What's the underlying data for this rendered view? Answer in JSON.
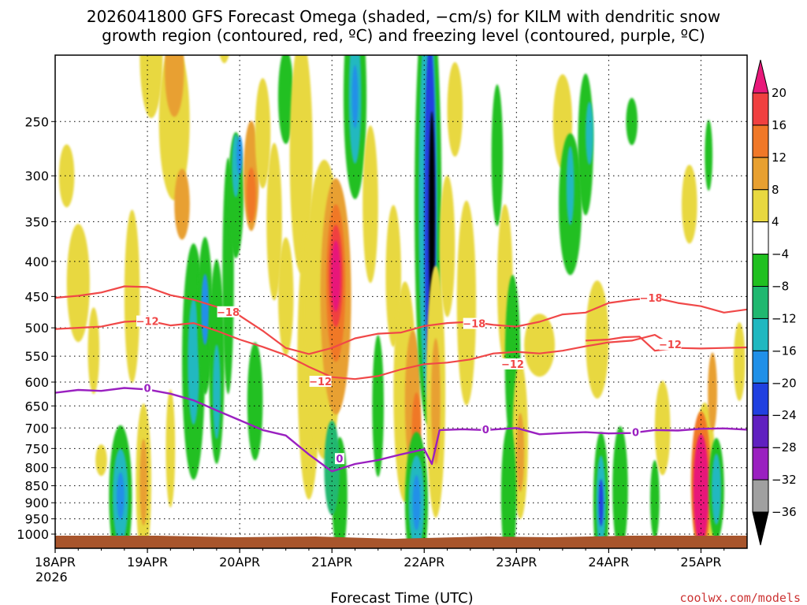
{
  "chart_data": {
    "type": "heatmap",
    "title_line1": "2026041800 GFS Forecast Omega (shaded, −cm/s) for KILM with dendritic snow",
    "title_line2": "growth region (contoured, red, ºC) and freezing level (contoured, purple, ºC)",
    "xlabel": "Forecast Time (UTC)",
    "year_label": "2026",
    "credit": "coolwx.com/models",
    "x_range_hours": [
      0,
      180
    ],
    "x_ticks": [
      {
        "label": "18APR",
        "hour": 0
      },
      {
        "label": "19APR",
        "hour": 24
      },
      {
        "label": "20APR",
        "hour": 48
      },
      {
        "label": "21APR",
        "hour": 72
      },
      {
        "label": "22APR",
        "hour": 96
      },
      {
        "label": "23APR",
        "hour": 120
      },
      {
        "label": "24APR",
        "hour": 144
      },
      {
        "label": "25APR",
        "hour": 168
      }
    ],
    "y_label_units": "hPa",
    "y_range_hpa": [
      1000,
      200
    ],
    "y_ticks": [
      250,
      300,
      350,
      400,
      450,
      500,
      550,
      600,
      650,
      700,
      750,
      800,
      850,
      900,
      950,
      1000
    ],
    "colorbar": {
      "levels": [
        20,
        16,
        12,
        8,
        4,
        -4,
        -8,
        -12,
        -16,
        -20,
        -24,
        -28,
        -32,
        -36
      ],
      "colors": {
        "gt20": "#e8197a",
        "16_20": "#f04040",
        "12_16": "#f07828",
        "8_12": "#e8a030",
        "4_8": "#e8d840",
        "neutral": "#ffffff",
        "m8_m4": "#20c020",
        "m12_m8": "#20b870",
        "m16_m12": "#20b8c0",
        "m20_m16": "#2090e8",
        "m24_m20": "#2040e0",
        "m28_m24": "#6020c0",
        "m32_m28": "#9a20c0",
        "m36_m32": "#a0a0a0",
        "lt36": "#000000"
      }
    },
    "contours": {
      "dendritic_minus12": {
        "label": "-12",
        "color": "#f04848",
        "points": [
          [
            0,
            502
          ],
          [
            6,
            500
          ],
          [
            12,
            498
          ],
          [
            18,
            490
          ],
          [
            24,
            488
          ],
          [
            30,
            496
          ],
          [
            36,
            492
          ],
          [
            42,
            505
          ],
          [
            48,
            520
          ],
          [
            54,
            533
          ],
          [
            60,
            548
          ],
          [
            66,
            570
          ],
          [
            72,
            590
          ],
          [
            78,
            594
          ],
          [
            84,
            588
          ],
          [
            90,
            575
          ],
          [
            96,
            565
          ],
          [
            102,
            562
          ],
          [
            108,
            556
          ],
          [
            114,
            545
          ],
          [
            120,
            542
          ],
          [
            126,
            545
          ],
          [
            132,
            540
          ],
          [
            138,
            532
          ],
          [
            144,
            525
          ],
          [
            150,
            522
          ],
          [
            156,
            512
          ],
          [
            158,
            520
          ]
        ]
      },
      "dendritic_minus18": {
        "label": "-18",
        "color": "#f04848",
        "points": [
          [
            0,
            452
          ],
          [
            6,
            449
          ],
          [
            12,
            444
          ],
          [
            18,
            435
          ],
          [
            24,
            436
          ],
          [
            30,
            448
          ],
          [
            36,
            455
          ],
          [
            42,
            466
          ],
          [
            48,
            480
          ],
          [
            54,
            505
          ],
          [
            60,
            535
          ],
          [
            66,
            546
          ],
          [
            72,
            535
          ],
          [
            78,
            518
          ],
          [
            84,
            510
          ],
          [
            90,
            508
          ],
          [
            96,
            497
          ],
          [
            102,
            492
          ],
          [
            108,
            490
          ],
          [
            114,
            495
          ],
          [
            120,
            498
          ],
          [
            126,
            490
          ],
          [
            132,
            478
          ],
          [
            138,
            475
          ],
          [
            144,
            460
          ],
          [
            150,
            455
          ],
          [
            156,
            452
          ],
          [
            162,
            460
          ],
          [
            168,
            465
          ],
          [
            174,
            475
          ],
          [
            180,
            470
          ]
        ]
      },
      "dendritic_minus12_upper": {
        "label": "-12",
        "color": "#f04848",
        "points": [
          [
            138,
            522
          ],
          [
            144,
            520
          ],
          [
            148,
            516
          ],
          [
            152,
            515
          ],
          [
            156,
            540
          ],
          [
            162,
            535
          ],
          [
            168,
            536
          ],
          [
            174,
            535
          ],
          [
            180,
            534
          ]
        ]
      },
      "freezing_level_0": {
        "label": "0",
        "color": "#9a20c0",
        "points": [
          [
            0,
            622
          ],
          [
            6,
            616
          ],
          [
            12,
            618
          ],
          [
            18,
            612
          ],
          [
            24,
            615
          ],
          [
            30,
            624
          ],
          [
            36,
            638
          ],
          [
            42,
            660
          ],
          [
            48,
            682
          ],
          [
            54,
            705
          ],
          [
            60,
            718
          ],
          [
            66,
            765
          ],
          [
            72,
            810
          ],
          [
            78,
            790
          ],
          [
            84,
            780
          ],
          [
            90,
            765
          ],
          [
            96,
            752
          ],
          [
            98,
            790
          ],
          [
            100,
            705
          ],
          [
            106,
            703
          ],
          [
            112,
            705
          ],
          [
            120,
            700
          ],
          [
            126,
            715
          ],
          [
            132,
            712
          ],
          [
            138,
            710
          ],
          [
            144,
            713
          ],
          [
            150,
            712
          ],
          [
            156,
            705
          ],
          [
            162,
            706
          ],
          [
            168,
            702
          ],
          [
            174,
            701
          ],
          [
            180,
            704
          ]
        ]
      }
    },
    "contour_labels": [
      {
        "text": "−18",
        "hour": 45,
        "hpa": 475,
        "color": "#f04848"
      },
      {
        "text": "−12",
        "hour": 24,
        "hpa": 490,
        "color": "#f04848"
      },
      {
        "text": "−12",
        "hour": 69,
        "hpa": 600,
        "color": "#f04848"
      },
      {
        "text": "−18",
        "hour": 109,
        "hpa": 494,
        "color": "#f04848"
      },
      {
        "text": "−12",
        "hour": 119,
        "hpa": 566,
        "color": "#f04848"
      },
      {
        "text": "−18",
        "hour": 155,
        "hpa": 453,
        "color": "#f04848"
      },
      {
        "text": "−12",
        "hour": 160,
        "hpa": 530,
        "color": "#f04848"
      },
      {
        "text": "0",
        "hour": 24,
        "hpa": 614,
        "color": "#9a20c0"
      },
      {
        "text": "0",
        "hour": 74,
        "hpa": 778,
        "color": "#9a20c0"
      },
      {
        "text": "0",
        "hour": 112,
        "hpa": 705,
        "color": "#9a20c0"
      },
      {
        "text": "0",
        "hour": 151,
        "hpa": 712,
        "color": "#9a20c0"
      }
    ],
    "omega_blobs": [
      {
        "hour": 3,
        "hpa": 300,
        "w": 2,
        "h": 80,
        "c": "#e8d840"
      },
      {
        "hour": 6,
        "hpa": 430,
        "w": 3,
        "h": 150,
        "c": "#e8d840"
      },
      {
        "hour": 10,
        "hpa": 540,
        "w": 1.5,
        "h": 110,
        "c": "#e8d840"
      },
      {
        "hour": 12,
        "hpa": 780,
        "w": 1.5,
        "h": 40,
        "c": "#e8d840"
      },
      {
        "hour": 17,
        "hpa": 880,
        "w": 3,
        "h": 180,
        "c": "#20c020"
      },
      {
        "hour": 17,
        "hpa": 880,
        "w": 2,
        "h": 120,
        "c": "#20b8c0"
      },
      {
        "hour": 17,
        "hpa": 880,
        "w": 1,
        "h": 60,
        "c": "#2090e8"
      },
      {
        "hour": 23,
        "hpa": 840,
        "w": 2,
        "h": 200,
        "c": "#e8d840"
      },
      {
        "hour": 23,
        "hpa": 840,
        "w": 1,
        "h": 110,
        "c": "#e8a030"
      },
      {
        "hour": 20,
        "hpa": 450,
        "w": 2,
        "h": 220,
        "c": "#e8d840"
      },
      {
        "hour": 25,
        "hpa": 200,
        "w": 3,
        "h": 160,
        "c": "#e8d840"
      },
      {
        "hour": 31,
        "hpa": 250,
        "w": 4,
        "h": 200,
        "c": "#e8d840"
      },
      {
        "hour": 31,
        "hpa": 210,
        "w": 2.5,
        "h": 120,
        "c": "#e8a030"
      },
      {
        "hour": 33,
        "hpa": 330,
        "w": 2,
        "h": 90,
        "c": "#e8a030"
      },
      {
        "hour": 30,
        "hpa": 750,
        "w": 1.2,
        "h": 150,
        "c": "#e8d840"
      },
      {
        "hour": 36,
        "hpa": 560,
        "w": 3,
        "h": 300,
        "c": "#20c020"
      },
      {
        "hour": 36,
        "hpa": 560,
        "w": 1.5,
        "h": 160,
        "c": "#20b8c0"
      },
      {
        "hour": 39,
        "hpa": 480,
        "w": 2,
        "h": 200,
        "c": "#20c020"
      },
      {
        "hour": 39,
        "hpa": 470,
        "w": 1,
        "h": 90,
        "c": "#2090e8"
      },
      {
        "hour": 42,
        "hpa": 560,
        "w": 2,
        "h": 260,
        "c": "#20c020"
      },
      {
        "hour": 42,
        "hpa": 620,
        "w": 1,
        "h": 120,
        "c": "#20b8c0"
      },
      {
        "hour": 45,
        "hpa": 420,
        "w": 1.5,
        "h": 300,
        "c": "#20c020"
      },
      {
        "hour": 47,
        "hpa": 320,
        "w": 2,
        "h": 160,
        "c": "#20c020"
      },
      {
        "hour": 47,
        "hpa": 290,
        "w": 1,
        "h": 80,
        "c": "#20b8c0"
      },
      {
        "hour": 48,
        "hpa": 280,
        "w": 0.8,
        "h": 50,
        "c": "#2090e8"
      },
      {
        "hour": 44,
        "hpa": 180,
        "w": 2,
        "h": 100,
        "c": "#e8d840"
      },
      {
        "hour": 51,
        "hpa": 300,
        "w": 2,
        "h": 140,
        "c": "#e8a030"
      },
      {
        "hour": 51,
        "hpa": 320,
        "w": 1.2,
        "h": 70,
        "c": "#f07828"
      },
      {
        "hour": 54,
        "hpa": 260,
        "w": 2,
        "h": 140,
        "c": "#e8d840"
      },
      {
        "hour": 57,
        "hpa": 350,
        "w": 2,
        "h": 200,
        "c": "#e8d840"
      },
      {
        "hour": 52,
        "hpa": 640,
        "w": 2,
        "h": 150,
        "c": "#20c020"
      },
      {
        "hour": 60,
        "hpa": 230,
        "w": 2,
        "h": 120,
        "c": "#20c020"
      },
      {
        "hour": 60,
        "hpa": 450,
        "w": 2,
        "h": 150,
        "c": "#e8d840"
      },
      {
        "hour": 64,
        "hpa": 280,
        "w": 3,
        "h": 300,
        "c": "#e8d840"
      },
      {
        "hour": 66,
        "hpa": 560,
        "w": 3,
        "h": 350,
        "c": "#e8d840"
      },
      {
        "hour": 70,
        "hpa": 470,
        "w": 5,
        "h": 380,
        "c": "#e8d840"
      },
      {
        "hour": 73,
        "hpa": 450,
        "w": 4,
        "h": 300,
        "c": "#e8a030"
      },
      {
        "hour": 73,
        "hpa": 430,
        "w": 2.5,
        "h": 200,
        "c": "#f07828"
      },
      {
        "hour": 73,
        "hpa": 420,
        "w": 1.8,
        "h": 130,
        "c": "#f04040"
      },
      {
        "hour": 73,
        "hpa": 420,
        "w": 1.2,
        "h": 90,
        "c": "#e8197a"
      },
      {
        "hour": 74,
        "hpa": 880,
        "w": 2,
        "h": 150,
        "c": "#20c020"
      },
      {
        "hour": 72,
        "hpa": 800,
        "w": 2,
        "h": 120,
        "c": "#20b870"
      },
      {
        "hour": 78,
        "hpa": 230,
        "w": 3,
        "h": 260,
        "c": "#20c020"
      },
      {
        "hour": 78,
        "hpa": 230,
        "w": 1.6,
        "h": 170,
        "c": "#20b8c0"
      },
      {
        "hour": 78,
        "hpa": 230,
        "w": 0.8,
        "h": 80,
        "c": "#2090e8"
      },
      {
        "hour": 82,
        "hpa": 330,
        "w": 2,
        "h": 200,
        "c": "#e8d840"
      },
      {
        "hour": 84,
        "hpa": 650,
        "w": 1.5,
        "h": 180,
        "c": "#20c020"
      },
      {
        "hour": 88,
        "hpa": 420,
        "w": 2,
        "h": 180,
        "c": "#e8d840"
      },
      {
        "hour": 91,
        "hpa": 620,
        "w": 3,
        "h": 280,
        "c": "#e8d840"
      },
      {
        "hour": 93,
        "hpa": 640,
        "w": 2,
        "h": 180,
        "c": "#e8a030"
      },
      {
        "hour": 94,
        "hpa": 700,
        "w": 1.2,
        "h": 90,
        "c": "#f07828"
      },
      {
        "hour": 94,
        "hpa": 900,
        "w": 3,
        "h": 180,
        "c": "#20c020"
      },
      {
        "hour": 94,
        "hpa": 900,
        "w": 2,
        "h": 120,
        "c": "#20b8c0"
      },
      {
        "hour": 94,
        "hpa": 900,
        "w": 1,
        "h": 70,
        "c": "#2090e8"
      },
      {
        "hour": 97,
        "hpa": 330,
        "w": 3.5,
        "h": 560,
        "c": "#20c020"
      },
      {
        "hour": 97,
        "hpa": 330,
        "w": 2.4,
        "h": 500,
        "c": "#20b8c0"
      },
      {
        "hour": 97.5,
        "hpa": 340,
        "w": 1.5,
        "h": 440,
        "c": "#2040e0"
      },
      {
        "hour": 98,
        "hpa": 350,
        "w": 0.8,
        "h": 280,
        "c": "#000000"
      },
      {
        "hour": 99,
        "hpa": 620,
        "w": 2.5,
        "h": 320,
        "c": "#e8d840"
      },
      {
        "hour": 99,
        "hpa": 640,
        "w": 1.2,
        "h": 160,
        "c": "#e8a030"
      },
      {
        "hour": 102,
        "hpa": 380,
        "w": 2,
        "h": 180,
        "c": "#e8d840"
      },
      {
        "hour": 104,
        "hpa": 240,
        "w": 2,
        "h": 120,
        "c": "#e8d840"
      },
      {
        "hour": 107,
        "hpa": 460,
        "w": 2.5,
        "h": 260,
        "c": "#e8d840"
      },
      {
        "hour": 115,
        "hpa": 280,
        "w": 1.5,
        "h": 180,
        "c": "#20c020"
      },
      {
        "hour": 117,
        "hpa": 430,
        "w": 2,
        "h": 200,
        "c": "#e8d840"
      },
      {
        "hour": 119,
        "hpa": 560,
        "w": 2,
        "h": 220,
        "c": "#20c020"
      },
      {
        "hour": 121,
        "hpa": 730,
        "w": 2,
        "h": 200,
        "c": "#e8d840"
      },
      {
        "hour": 121,
        "hpa": 760,
        "w": 1,
        "h": 100,
        "c": "#e8a030"
      },
      {
        "hour": 118,
        "hpa": 880,
        "w": 2,
        "h": 180,
        "c": "#20c020"
      },
      {
        "hour": 126,
        "hpa": 530,
        "w": 4,
        "h": 80,
        "c": "#e8d840"
      },
      {
        "hour": 132,
        "hpa": 250,
        "w": 2.5,
        "h": 120,
        "c": "#e8d840"
      },
      {
        "hour": 134,
        "hpa": 330,
        "w": 3,
        "h": 180,
        "c": "#20c020"
      },
      {
        "hour": 134,
        "hpa": 310,
        "w": 1,
        "h": 100,
        "c": "#20b8c0"
      },
      {
        "hour": 138,
        "hpa": 270,
        "w": 2,
        "h": 180,
        "c": "#20c020"
      },
      {
        "hour": 139,
        "hpa": 260,
        "w": 1,
        "h": 80,
        "c": "#20b8c0"
      },
      {
        "hour": 141,
        "hpa": 520,
        "w": 3,
        "h": 150,
        "c": "#e8d840"
      },
      {
        "hour": 142,
        "hpa": 900,
        "w": 2,
        "h": 180,
        "c": "#20c020"
      },
      {
        "hour": 142,
        "hpa": 900,
        "w": 1.2,
        "h": 120,
        "c": "#20b8c0"
      },
      {
        "hour": 142,
        "hpa": 900,
        "w": 0.6,
        "h": 60,
        "c": "#2040e0"
      },
      {
        "hour": 147,
        "hpa": 860,
        "w": 2,
        "h": 160,
        "c": "#20c020"
      },
      {
        "hour": 150,
        "hpa": 250,
        "w": 1.5,
        "h": 60,
        "c": "#20c020"
      },
      {
        "hour": 156,
        "hpa": 890,
        "w": 1.2,
        "h": 100,
        "c": "#20c020"
      },
      {
        "hour": 158,
        "hpa": 700,
        "w": 2,
        "h": 120,
        "c": "#e8d840"
      },
      {
        "hour": 165,
        "hpa": 330,
        "w": 2,
        "h": 100,
        "c": "#e8d840"
      },
      {
        "hour": 169,
        "hpa": 860,
        "w": 3,
        "h": 220,
        "c": "#e8d840"
      },
      {
        "hour": 168,
        "hpa": 840,
        "w": 2.6,
        "h": 180,
        "c": "#f07828"
      },
      {
        "hour": 168,
        "hpa": 860,
        "w": 2,
        "h": 140,
        "c": "#e8197a"
      },
      {
        "hour": 172,
        "hpa": 860,
        "w": 2,
        "h": 130,
        "c": "#20c020"
      },
      {
        "hour": 172,
        "hpa": 860,
        "w": 1.2,
        "h": 90,
        "c": "#20b8c0"
      },
      {
        "hour": 170,
        "hpa": 280,
        "w": 1,
        "h": 90,
        "c": "#20c020"
      },
      {
        "hour": 171,
        "hpa": 620,
        "w": 1.2,
        "h": 100,
        "c": "#e8a030"
      },
      {
        "hour": 178,
        "hpa": 560,
        "w": 1.5,
        "h": 100,
        "c": "#e8d840"
      }
    ]
  }
}
